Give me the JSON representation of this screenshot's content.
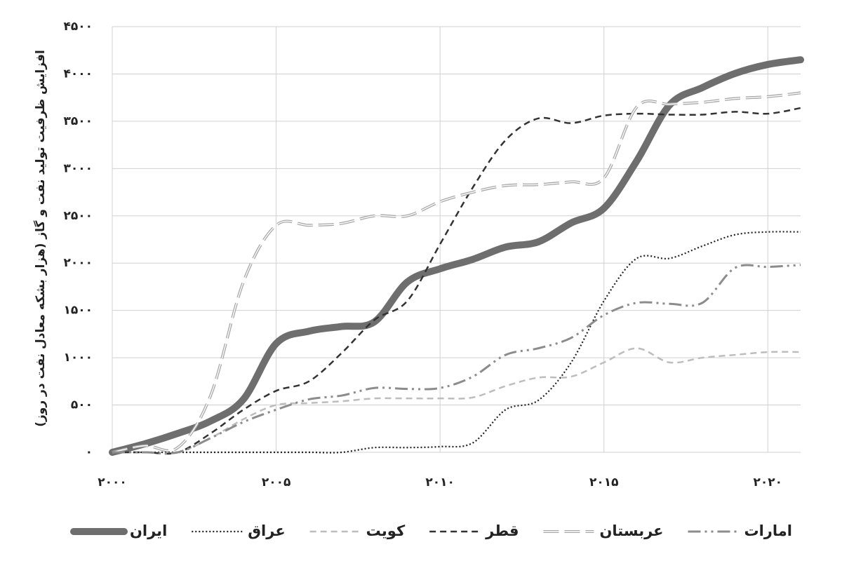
{
  "chart_data": {
    "type": "line",
    "y_label": "افزایش ظرفیت تولید نفت و گاز (هزار بشکه معادل نفت در روز)",
    "x": [
      2000,
      2001,
      2002,
      2003,
      2004,
      2005,
      2006,
      2007,
      2008,
      2009,
      2010,
      2011,
      2012,
      2013,
      2014,
      2015,
      2016,
      2017,
      2018,
      2019,
      2020,
      2021
    ],
    "series": [
      {
        "name": "ایران",
        "color": "#6e6e6e",
        "style": "thick",
        "values": [
          0,
          90,
          200,
          330,
          560,
          1150,
          1280,
          1330,
          1380,
          1800,
          1940,
          2040,
          2170,
          2225,
          2425,
          2580,
          3080,
          3670,
          3855,
          4005,
          4100,
          4150
        ]
      },
      {
        "name": "عراق",
        "color": "#222222",
        "style": "dotted",
        "values": [
          0,
          0,
          0,
          0,
          0,
          0,
          0,
          0,
          50,
          50,
          60,
          100,
          450,
          550,
          950,
          1600,
          2050,
          2050,
          2180,
          2300,
          2330,
          2330
        ]
      },
      {
        "name": "کویت",
        "color": "#bdbdbd",
        "style": "dashed",
        "values": [
          0,
          0,
          0,
          150,
          350,
          500,
          520,
          540,
          570,
          570,
          570,
          580,
          700,
          790,
          800,
          950,
          1100,
          950,
          1000,
          1030,
          1060,
          1060
        ]
      },
      {
        "name": "قطر",
        "color": "#333333",
        "style": "dashed",
        "values": [
          0,
          0,
          0,
          200,
          450,
          650,
          750,
          1050,
          1400,
          1600,
          2200,
          2800,
          3300,
          3530,
          3480,
          3560,
          3580,
          3570,
          3570,
          3600,
          3580,
          3640
        ]
      },
      {
        "name": "عربستان",
        "color": "#a8a8a8",
        "style": "double",
        "values": [
          0,
          70,
          50,
          600,
          1800,
          2400,
          2400,
          2420,
          2500,
          2500,
          2650,
          2750,
          2820,
          2830,
          2860,
          2900,
          3650,
          3680,
          3700,
          3740,
          3760,
          3800
        ]
      },
      {
        "name": "امارات",
        "color": "#8c8c8c",
        "style": "dash-dot",
        "values": [
          0,
          0,
          0,
          150,
          320,
          450,
          560,
          600,
          680,
          670,
          680,
          800,
          1030,
          1100,
          1210,
          1450,
          1580,
          1570,
          1580,
          1950,
          1960,
          1980
        ]
      }
    ],
    "xlim": [
      2000,
      2021
    ],
    "xticks": [
      {
        "value": 2000,
        "label": "۲۰۰۰"
      },
      {
        "value": 2005,
        "label": "۲۰۰۵"
      },
      {
        "value": 2010,
        "label": "۲۰۱۰"
      },
      {
        "value": 2015,
        "label": "۲۰۱۵"
      },
      {
        "value": 2020,
        "label": "۲۰۲۰"
      }
    ],
    "ylim": [
      0,
      4500
    ],
    "yticks": [
      {
        "value": 0,
        "label": "۰"
      },
      {
        "value": 500,
        "label": "۵۰۰"
      },
      {
        "value": 1000,
        "label": "۱۰۰۰"
      },
      {
        "value": 1500,
        "label": "۱۵۰۰"
      },
      {
        "value": 2000,
        "label": "۲۰۰۰"
      },
      {
        "value": 2500,
        "label": "۲۵۰۰"
      },
      {
        "value": 3000,
        "label": "۳۰۰۰"
      },
      {
        "value": 3500,
        "label": "۳۵۰۰"
      },
      {
        "value": 4000,
        "label": "۴۰۰۰"
      },
      {
        "value": 4500,
        "label": "۴۵۰۰"
      }
    ],
    "grid": true,
    "legend": "bottom"
  }
}
